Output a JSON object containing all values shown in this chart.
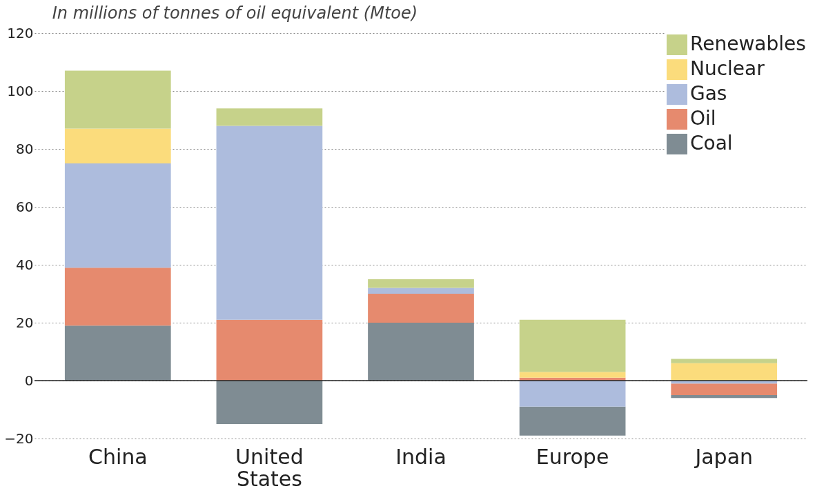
{
  "chart_data": {
    "type": "bar",
    "stacked": true,
    "title": "In millions of tonnes of oil equivalent (Mtoe)",
    "categories": [
      "China",
      "United States",
      "India",
      "Europe",
      "Japan"
    ],
    "series": [
      {
        "name": "Coal",
        "color": "#7f8c93",
        "values": [
          19,
          -15,
          20,
          -10,
          -1
        ]
      },
      {
        "name": "Oil",
        "color": "#e68a6e",
        "values": [
          20,
          21,
          10,
          1,
          -4
        ]
      },
      {
        "name": "Gas",
        "color": "#adbcdd",
        "values": [
          36,
          67,
          2,
          -9,
          -1
        ]
      },
      {
        "name": "Nuclear",
        "color": "#fbdc7c",
        "values": [
          12,
          null,
          null,
          2,
          6
        ]
      },
      {
        "name": "Renewables",
        "color": "#c6d28a",
        "values": [
          20,
          6,
          3,
          18,
          1.5
        ]
      }
    ],
    "ylim": [
      -20,
      120
    ],
    "yticks": [
      -20,
      0,
      20,
      40,
      60,
      80,
      100,
      120
    ],
    "grid": "y",
    "legend": "top right",
    "ref_lines": [
      {
        "axis": "y",
        "value": 0,
        "color": "#222222"
      }
    ]
  }
}
